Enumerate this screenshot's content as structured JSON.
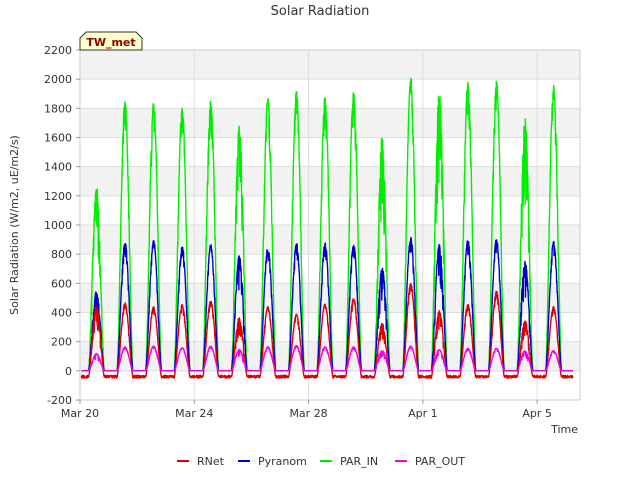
{
  "chart_data": {
    "type": "line",
    "title": "Solar Radiation",
    "xlabel": "Time",
    "ylabel": "Solar Radiation (W/m2, uE/m2/s)",
    "station_label": "TW_met",
    "x_range_days": [
      0,
      17.5
    ],
    "ylim": [
      -200,
      2200
    ],
    "y_ticks": [
      -200,
      0,
      200,
      400,
      600,
      800,
      1000,
      1200,
      1400,
      1600,
      1800,
      2000,
      2200
    ],
    "x_ticks": [
      {
        "day": 0,
        "label": "Mar 20"
      },
      {
        "day": 4,
        "label": "Mar 24"
      },
      {
        "day": 8,
        "label": "Mar 28"
      },
      {
        "day": 12,
        "label": "Apr 1"
      },
      {
        "day": 16,
        "label": "Apr 5"
      }
    ],
    "grid": true,
    "legend_position": "bottom",
    "day_starts": [
      0.3,
      1.3,
      2.3,
      3.3,
      4.3,
      5.3,
      6.3,
      7.3,
      8.3,
      9.3,
      10.3,
      11.3,
      12.3,
      13.3,
      14.3,
      15.3,
      16.3
    ],
    "series": [
      {
        "name": "RNet",
        "color": "#dd0000",
        "daily_peak": [
          450,
          465,
          440,
          455,
          480,
          370,
          440,
          390,
          460,
          500,
          330,
          600,
          420,
          460,
          550,
          350,
          440
        ],
        "night_value": -40
      },
      {
        "name": "Pyranom",
        "color": "#0000cc",
        "daily_peak": [
          550,
          885,
          900,
          860,
          870,
          800,
          850,
          880,
          880,
          875,
          720,
          920,
          880,
          905,
          905,
          760,
          890
        ],
        "night_value": 0
      },
      {
        "name": "PAR_IN",
        "color": "#00ee00",
        "daily_peak": [
          1270,
          1865,
          1845,
          1820,
          1865,
          1680,
          1875,
          1925,
          1880,
          1920,
          1610,
          2020,
          1960,
          1990,
          1995,
          1740,
          1960
        ],
        "night_value": 0
      },
      {
        "name": "PAR_OUT",
        "color": "#ee00ee",
        "daily_peak": [
          120,
          165,
          170,
          160,
          170,
          150,
          165,
          175,
          165,
          165,
          140,
          170,
          150,
          155,
          155,
          140,
          140
        ],
        "night_value": 0
      }
    ]
  }
}
